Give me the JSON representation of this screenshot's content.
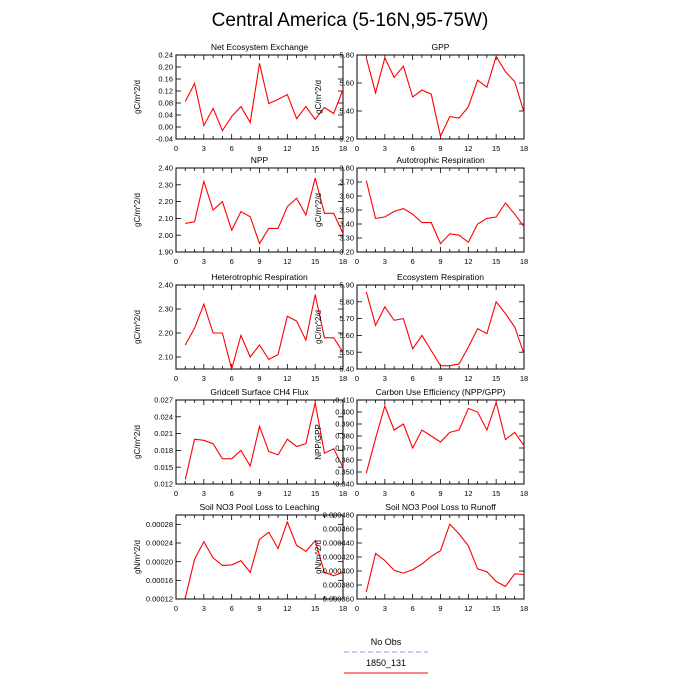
{
  "figure": {
    "title": "Central America (5-16N,95-75W)"
  },
  "legend": {
    "entries": [
      {
        "label": "No Obs",
        "color": "#9999ff",
        "dash": true
      },
      {
        "label": "1850_131",
        "color": "#ff0000",
        "dash": false
      }
    ]
  },
  "colors": {
    "series": "#ff0000",
    "axis": "#000000"
  },
  "chart_data": [
    {
      "type": "line",
      "title": "Net Ecosystem Exchange",
      "ylabel": "gC/m^2/d",
      "x": [
        1,
        2,
        3,
        4,
        5,
        6,
        7,
        8,
        9,
        10,
        11,
        12,
        13,
        14,
        15,
        16,
        17,
        18
      ],
      "xlim": [
        0,
        18
      ],
      "xticks": [
        "0",
        "3",
        "6",
        "9",
        "12",
        "15",
        "18"
      ],
      "ylim": [
        -0.04,
        0.24
      ],
      "yticks": [
        "-0.04",
        "0.00",
        "0.04",
        "0.08",
        "0.12",
        "0.16",
        "0.20",
        "0.24"
      ],
      "series": [
        {
          "values": [
            0.085,
            0.145,
            0.005,
            0.062,
            -0.012,
            0.035,
            0.068,
            0.015,
            0.212,
            0.078,
            0.092,
            0.108,
            0.028,
            0.068,
            0.025,
            0.065,
            0.045,
            0.125
          ]
        }
      ]
    },
    {
      "type": "line",
      "title": "GPP",
      "ylabel": "gC/m^2/d",
      "x": [
        1,
        2,
        3,
        4,
        5,
        6,
        7,
        8,
        9,
        10,
        11,
        12,
        13,
        14,
        15,
        16,
        17,
        18
      ],
      "xlim": [
        0,
        18
      ],
      "xticks": [
        "0",
        "3",
        "6",
        "9",
        "12",
        "15",
        "18"
      ],
      "ylim": [
        5.2,
        5.8
      ],
      "yticks": [
        "5.20",
        "5.40",
        "5.60",
        "5.80"
      ],
      "series": [
        {
          "values": [
            5.78,
            5.53,
            5.78,
            5.64,
            5.72,
            5.5,
            5.55,
            5.52,
            5.22,
            5.36,
            5.35,
            5.43,
            5.62,
            5.57,
            5.79,
            5.68,
            5.61,
            5.39
          ]
        }
      ]
    },
    {
      "type": "line",
      "title": "NPP",
      "ylabel": "gC/m^2/d",
      "x": [
        1,
        2,
        3,
        4,
        5,
        6,
        7,
        8,
        9,
        10,
        11,
        12,
        13,
        14,
        15,
        16,
        17,
        18
      ],
      "xlim": [
        0,
        18
      ],
      "xticks": [
        "0",
        "3",
        "6",
        "9",
        "12",
        "15",
        "18"
      ],
      "ylim": [
        1.9,
        2.4
      ],
      "yticks": [
        "1.90",
        "2.00",
        "2.10",
        "2.20",
        "2.30",
        "2.40"
      ],
      "series": [
        {
          "values": [
            2.07,
            2.08,
            2.32,
            2.15,
            2.2,
            2.03,
            2.14,
            2.11,
            1.95,
            2.04,
            2.04,
            2.17,
            2.22,
            2.12,
            2.34,
            2.13,
            2.13,
            2.01
          ]
        }
      ]
    },
    {
      "type": "line",
      "title": "Autotrophic Respiration",
      "ylabel": "gC/m^2/d",
      "x": [
        1,
        2,
        3,
        4,
        5,
        6,
        7,
        8,
        9,
        10,
        11,
        12,
        13,
        14,
        15,
        16,
        17,
        18
      ],
      "xlim": [
        0,
        18
      ],
      "xticks": [
        "0",
        "3",
        "6",
        "9",
        "12",
        "15",
        "18"
      ],
      "ylim": [
        3.2,
        3.8
      ],
      "yticks": [
        "3.20",
        "3.30",
        "3.40",
        "3.50",
        "3.60",
        "3.70",
        "3.80"
      ],
      "series": [
        {
          "values": [
            3.71,
            3.44,
            3.45,
            3.49,
            3.51,
            3.47,
            3.41,
            3.41,
            3.26,
            3.33,
            3.32,
            3.27,
            3.4,
            3.44,
            3.45,
            3.55,
            3.47,
            3.38
          ]
        }
      ]
    },
    {
      "type": "line",
      "title": "Heterotrophic Respiration",
      "ylabel": "gC/m^2/d",
      "x": [
        1,
        2,
        3,
        4,
        5,
        6,
        7,
        8,
        9,
        10,
        11,
        12,
        13,
        14,
        15,
        16,
        17,
        18
      ],
      "xlim": [
        0,
        18
      ],
      "xticks": [
        "0",
        "3",
        "6",
        "9",
        "12",
        "15",
        "18"
      ],
      "ylim": [
        2.05,
        2.4
      ],
      "yticks": [
        "2.10",
        "2.20",
        "2.30",
        "2.40"
      ],
      "series": [
        {
          "values": [
            2.15,
            2.22,
            2.32,
            2.2,
            2.2,
            2.05,
            2.19,
            2.1,
            2.15,
            2.09,
            2.11,
            2.27,
            2.25,
            2.17,
            2.36,
            2.18,
            2.18,
            2.12
          ]
        }
      ]
    },
    {
      "type": "line",
      "title": "Ecosystem Respiration",
      "ylabel": "gC/m^2/d",
      "x": [
        1,
        2,
        3,
        4,
        5,
        6,
        7,
        8,
        9,
        10,
        11,
        12,
        13,
        14,
        15,
        16,
        17,
        18
      ],
      "xlim": [
        0,
        18
      ],
      "xticks": [
        "0",
        "3",
        "6",
        "9",
        "12",
        "15",
        "18"
      ],
      "ylim": [
        5.4,
        5.9
      ],
      "yticks": [
        "5.40",
        "5.50",
        "5.60",
        "5.70",
        "5.80",
        "5.90"
      ],
      "series": [
        {
          "values": [
            5.86,
            5.66,
            5.77,
            5.69,
            5.7,
            5.52,
            5.6,
            5.51,
            5.42,
            5.42,
            5.43,
            5.53,
            5.64,
            5.61,
            5.8,
            5.73,
            5.65,
            5.49
          ]
        }
      ]
    },
    {
      "type": "line",
      "title": "Gridcell Surface CH4 Flux",
      "ylabel": "gC/m^2/d",
      "x": [
        1,
        2,
        3,
        4,
        5,
        6,
        7,
        8,
        9,
        10,
        11,
        12,
        13,
        14,
        15,
        16,
        17,
        18
      ],
      "xlim": [
        0,
        18
      ],
      "xticks": [
        "0",
        "3",
        "6",
        "9",
        "12",
        "15",
        "18"
      ],
      "ylim": [
        0.012,
        0.027
      ],
      "yticks": [
        "0.012",
        "0.015",
        "0.018",
        "0.021",
        "0.024",
        "0.027"
      ],
      "series": [
        {
          "values": [
            0.0128,
            0.02,
            0.0198,
            0.0192,
            0.0165,
            0.0165,
            0.018,
            0.0152,
            0.0223,
            0.0178,
            0.0172,
            0.02,
            0.0187,
            0.0192,
            0.0265,
            0.0175,
            0.0183,
            0.015
          ]
        }
      ]
    },
    {
      "type": "line",
      "title": "Carbon Use Efficiency (NPP/GPP)",
      "ylabel": "NPP/GPP",
      "x": [
        1,
        2,
        3,
        4,
        5,
        6,
        7,
        8,
        9,
        10,
        11,
        12,
        13,
        14,
        15,
        16,
        17,
        18
      ],
      "xlim": [
        0,
        18
      ],
      "xticks": [
        "0",
        "3",
        "6",
        "9",
        "12",
        "15",
        "18"
      ],
      "ylim": [
        0.34,
        0.41
      ],
      "yticks": [
        "0.340",
        "0.350",
        "0.360",
        "0.370",
        "0.380",
        "0.390",
        "0.400",
        "0.410"
      ],
      "series": [
        {
          "values": [
            0.349,
            0.378,
            0.405,
            0.385,
            0.39,
            0.37,
            0.385,
            0.38,
            0.375,
            0.383,
            0.385,
            0.403,
            0.4,
            0.385,
            0.408,
            0.377,
            0.383,
            0.372
          ]
        }
      ]
    },
    {
      "type": "line",
      "title": "Soil NO3 Pool Loss to Leaching",
      "ylabel": "gN/m^2/d",
      "x": [
        1,
        2,
        3,
        4,
        5,
        6,
        7,
        8,
        9,
        10,
        11,
        12,
        13,
        14,
        15,
        16,
        17,
        18
      ],
      "xlim": [
        0,
        18
      ],
      "xticks": [
        "0",
        "3",
        "6",
        "9",
        "12",
        "15",
        "18"
      ],
      "ylim": [
        0.00012,
        0.0003
      ],
      "yticks": [
        "0.00012",
        "0.00016",
        "0.00020",
        "0.00024",
        "0.00028"
      ],
      "series": [
        {
          "values": [
            0.000122,
            0.000205,
            0.000243,
            0.000208,
            0.000192,
            0.000193,
            0.000202,
            0.000177,
            0.000248,
            0.000263,
            0.000228,
            0.000285,
            0.000235,
            0.000222,
            0.000245,
            0.000177,
            0.00017,
            0.000177
          ]
        }
      ]
    },
    {
      "type": "line",
      "title": "Soil NO3 Pool Loss to Runoff",
      "ylabel": "gN/m^2/d",
      "x": [
        1,
        2,
        3,
        4,
        5,
        6,
        7,
        8,
        9,
        10,
        11,
        12,
        13,
        14,
        15,
        16,
        17,
        18
      ],
      "xlim": [
        0,
        18
      ],
      "xticks": [
        "0",
        "3",
        "6",
        "9",
        "12",
        "15",
        "18"
      ],
      "ylim": [
        0.00036,
        0.00048
      ],
      "yticks": [
        "0.000360",
        "0.000380",
        "0.000400",
        "0.000420",
        "0.000440",
        "0.000460",
        "0.000480"
      ],
      "series": [
        {
          "values": [
            0.00037,
            0.000425,
            0.000415,
            0.000401,
            0.000397,
            0.000402,
            0.00041,
            0.000421,
            0.000429,
            0.000467,
            0.000453,
            0.000436,
            0.000403,
            0.000399,
            0.000385,
            0.000378,
            0.000396,
            0.000395
          ]
        }
      ]
    }
  ]
}
